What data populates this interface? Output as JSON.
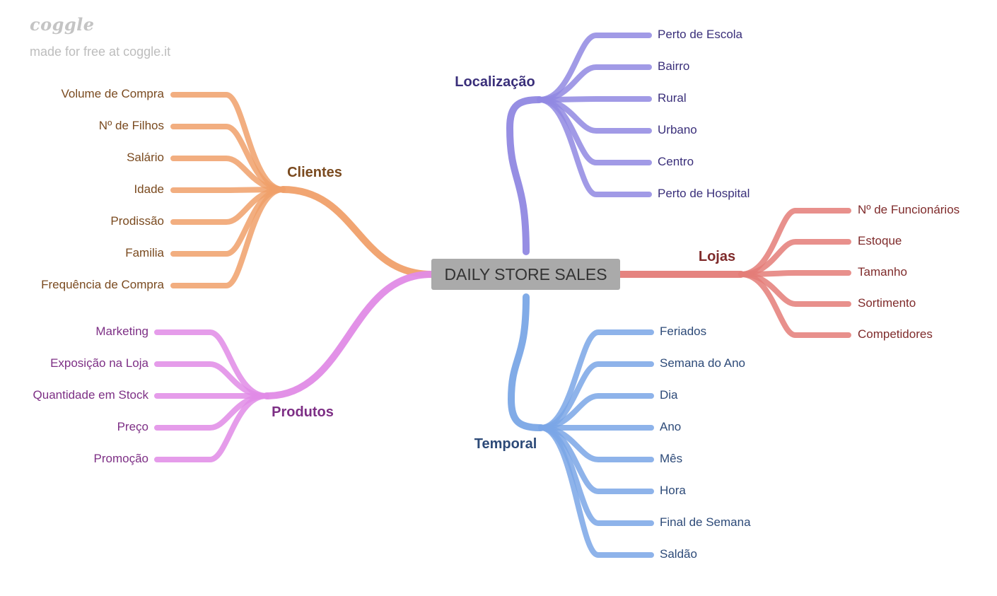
{
  "brand": {
    "logo_text": "coggle",
    "tagline": "made for free at coggle.it"
  },
  "root": {
    "label": "DAILY STORE SALES",
    "color": "#aaaaaa"
  },
  "branches": [
    {
      "id": "clientes",
      "label": "Clientes",
      "color": "#f0a06a",
      "text_color": "#7a4a1f",
      "children": [
        "Volume de Compra",
        "Nº de Filhos",
        "Salário",
        "Idade",
        "Prodissão",
        "Familia",
        "Frequência de Compra"
      ]
    },
    {
      "id": "produtos",
      "label": "Produtos",
      "color": "#e08be6",
      "text_color": "#7d2f85",
      "children": [
        "Marketing",
        "Exposição na Loja",
        "Quantidade em Stock",
        "Preço",
        "Promoção"
      ]
    },
    {
      "id": "localizacao",
      "label": "Localização",
      "color": "#9088e2",
      "text_color": "#3a2f7a",
      "children": [
        "Perto de Escola",
        "Bairro",
        "Rural",
        "Urbano",
        "Centro",
        "Perto de Hospital"
      ]
    },
    {
      "id": "lojas",
      "label": "Lojas",
      "color": "#e47c78",
      "text_color": "#7f2b2b",
      "children": [
        "Nº de Funcionários",
        "Estoque",
        "Tamanho",
        "Sortimento",
        "Competidores"
      ]
    },
    {
      "id": "temporal",
      "label": "Temporal",
      "color": "#7aa6e6",
      "text_color": "#2d4a78",
      "children": [
        "Feriados",
        "Semana do Ano",
        "Dia",
        "Ano",
        "Mês",
        "Hora",
        "Final de Semana",
        "Saldão"
      ]
    }
  ]
}
